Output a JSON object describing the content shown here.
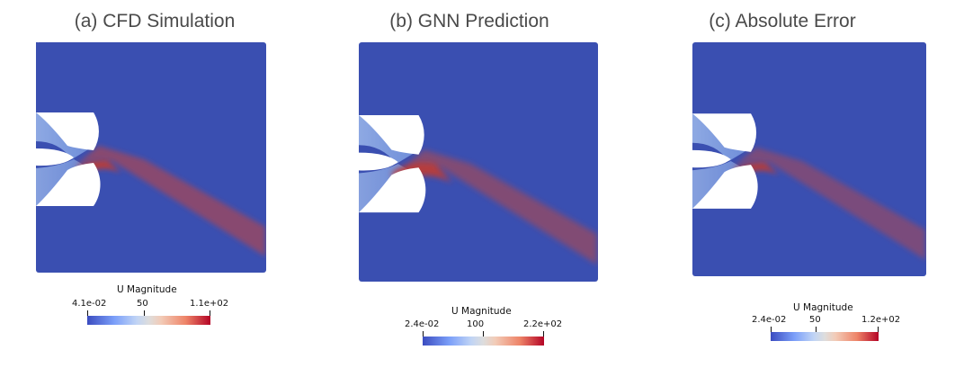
{
  "panels": [
    {
      "title": "(a) CFD Simulation",
      "colorbar": {
        "title": "U Magnitude",
        "min_label": "4.1e-02",
        "mid_label": "50",
        "max_label": "1.1e+02"
      }
    },
    {
      "title": "(b) GNN Prediction",
      "colorbar": {
        "title": "U Magnitude",
        "min_label": "2.4e-02",
        "mid_label": "100",
        "max_label": "2.2e+02"
      }
    },
    {
      "title": "(c) Absolute Error",
      "colorbar": {
        "title": "U Magnitude",
        "min_label": "2.4e-02",
        "mid_label": "50",
        "max_label": "1.2e+02"
      }
    }
  ],
  "colors": {
    "background_field": "#3a4fb1",
    "jet_core": "#c8453a",
    "jet_mid": "#e8a089",
    "jet_edge": "#a9c2ec",
    "colormap_low": "#3b4cc0",
    "colormap_high": "#b40426"
  }
}
